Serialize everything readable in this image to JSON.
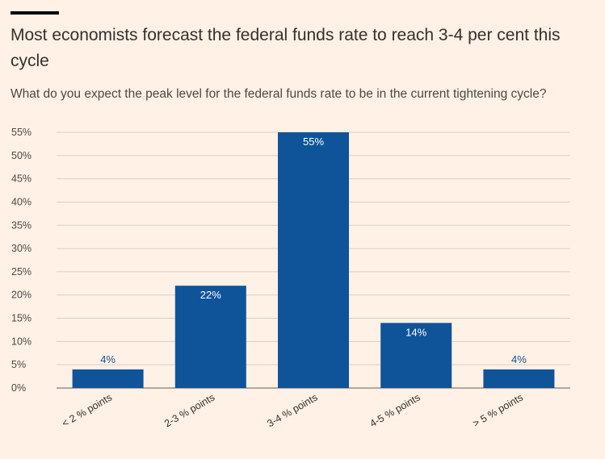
{
  "header": {
    "title": "Most economists forecast the federal funds rate to reach 3-4 per cent this cycle",
    "subtitle": "What do you expect the peak level for the federal funds rate to be in the current tightening cycle?"
  },
  "colors": {
    "background": "#fff1e5",
    "bar": "#0f5499",
    "grid": "#d9cdc3",
    "outside_label": "#0f5499",
    "inside_label": "#ffffff"
  },
  "chart_data": {
    "type": "bar",
    "title": "Most economists forecast the federal funds rate to reach 3-4 per cent this cycle",
    "subtitle": "What do you expect the peak level for the federal funds rate to be in the current tightening cycle?",
    "categories": [
      "< 2 % points",
      "2-3 % points",
      "3-4 % points",
      "4-5 % points",
      "> 5 % points"
    ],
    "values": [
      4,
      22,
      55,
      14,
      4
    ],
    "value_labels": [
      "4%",
      "22%",
      "55%",
      "14%",
      "4%"
    ],
    "ylim": [
      0,
      55
    ],
    "yticks": [
      0,
      5,
      10,
      15,
      20,
      25,
      30,
      35,
      40,
      45,
      50,
      55
    ],
    "ytick_labels": [
      "0%",
      "5%",
      "10%",
      "15%",
      "20%",
      "25%",
      "30%",
      "35%",
      "40%",
      "45%",
      "50%",
      "55%"
    ],
    "xlabel": "",
    "ylabel": "",
    "grid": true,
    "legend": "none"
  }
}
